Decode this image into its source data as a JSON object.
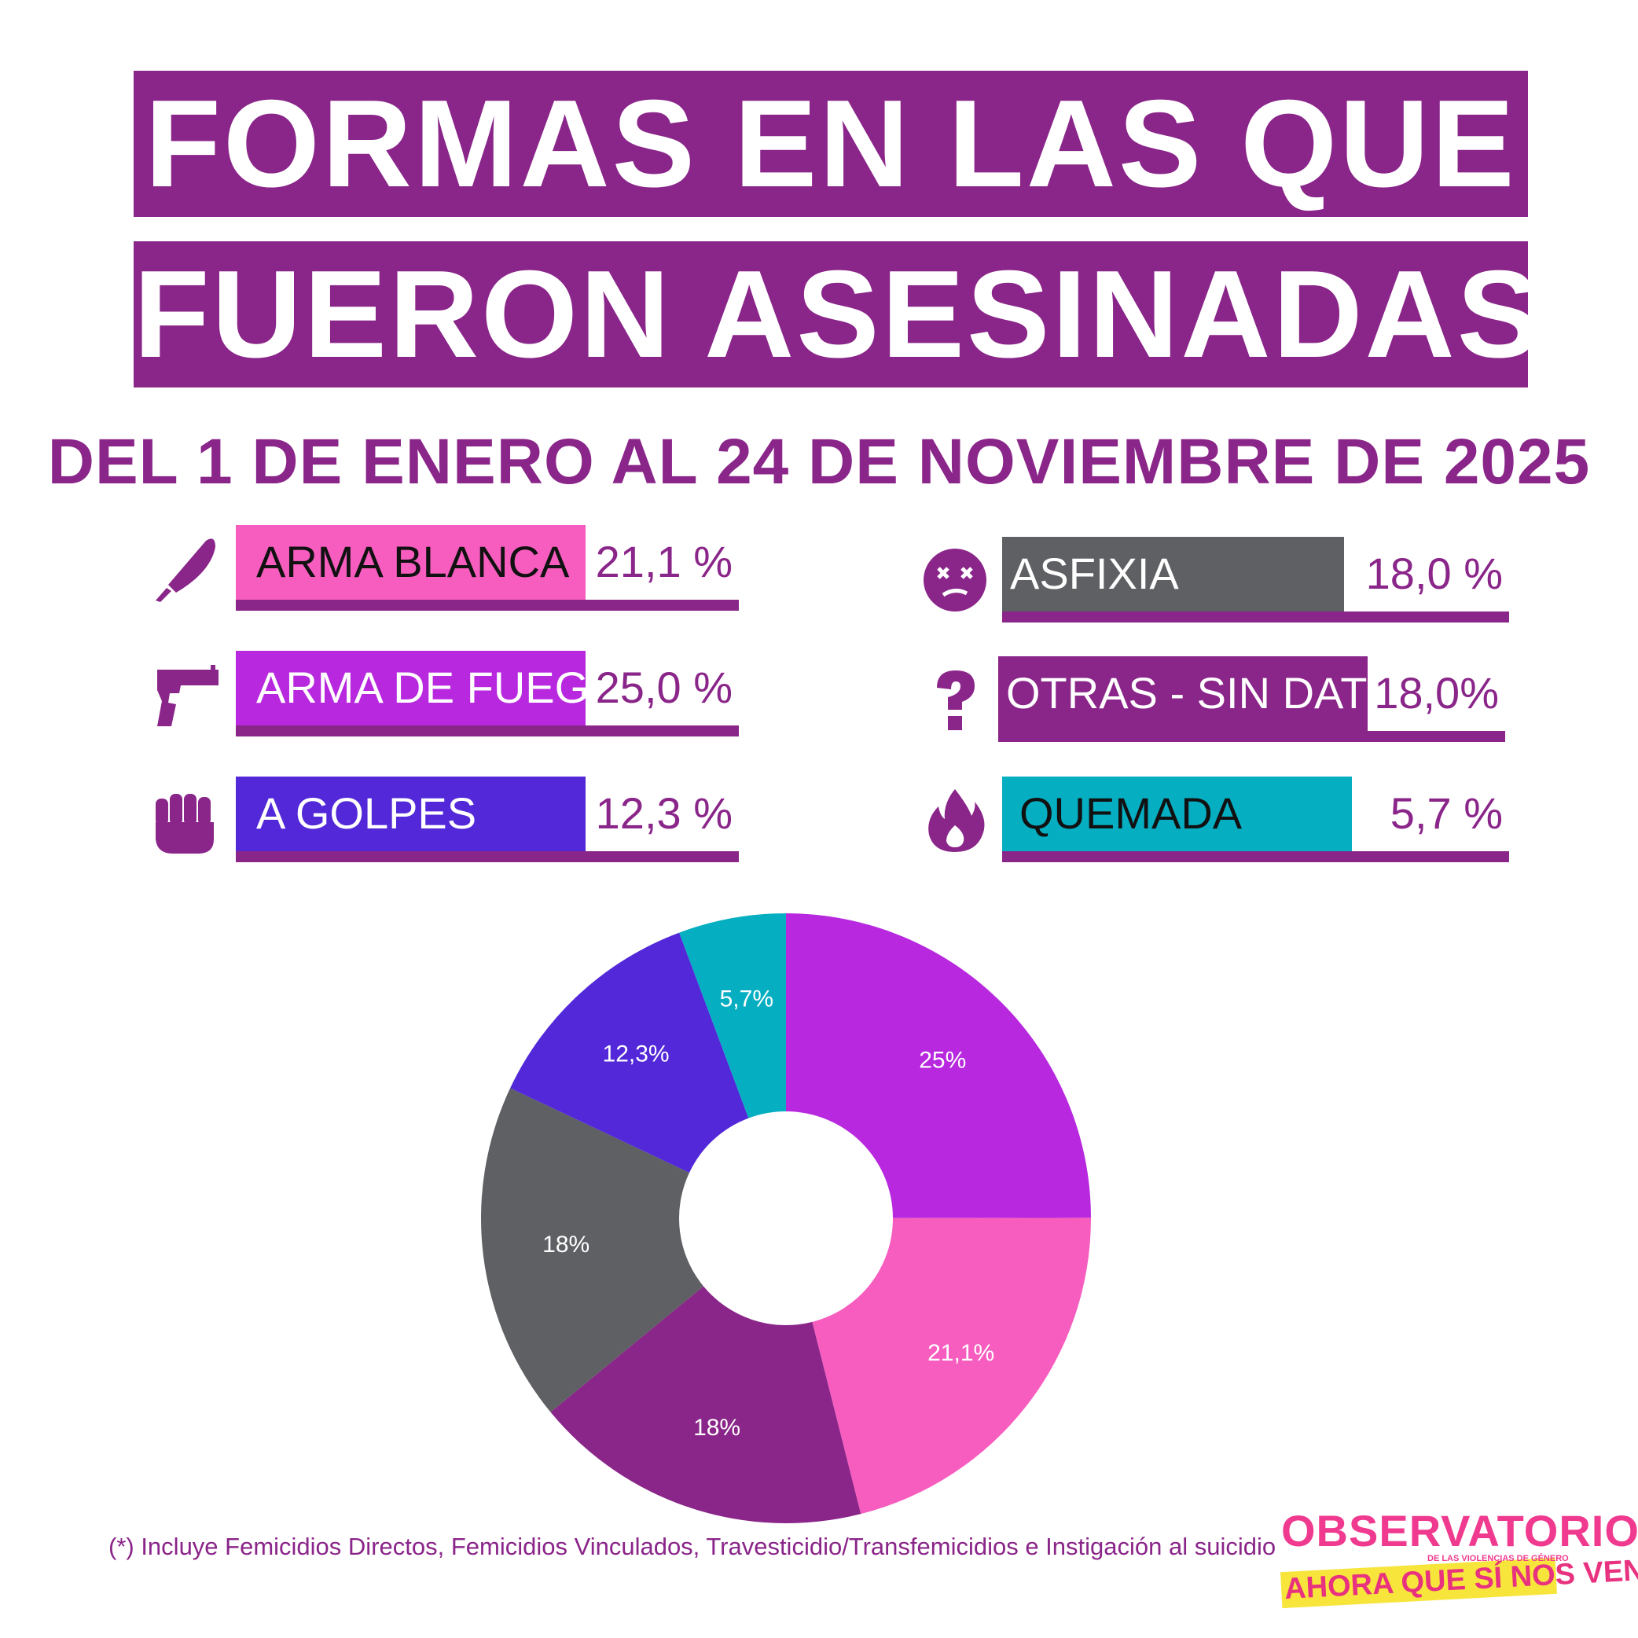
{
  "header": {
    "title_line1": "FORMAS EN LAS QUE",
    "title_line2": "FUERON ASESINADAS",
    "subtitle": "DEL 1 DE ENERO AL 24 DE NOVIEMBRE DE 2025"
  },
  "legend": [
    {
      "label": "ARMA BLANCA",
      "value": "21,1 %",
      "color": "#f75dbf",
      "text_color": "#111111",
      "icon": "knife-icon"
    },
    {
      "label": "ARMA DE FUEGO",
      "value": "25,0 %",
      "color": "#b728df",
      "text_color": "#ffffff",
      "icon": "gun-icon"
    },
    {
      "label": "A GOLPES",
      "value": "12,3 %",
      "color": "#5228d9",
      "text_color": "#ffffff",
      "icon": "fist-icon"
    },
    {
      "label": "ASFIXIA",
      "value": "18,0 %",
      "color": "#5f6064",
      "text_color": "#ffffff",
      "icon": "dizzy-face-icon"
    },
    {
      "label": "OTRAS - SIN DATOS",
      "value": "18,0%",
      "color": "#8a2589",
      "text_color": "#ffffff",
      "icon": "question-icon"
    },
    {
      "label": "QUEMADA",
      "value": "5,7 %",
      "color": "#06aec2",
      "text_color": "#111111",
      "icon": "fire-icon"
    }
  ],
  "chart_data": {
    "type": "pie",
    "style": "donut",
    "slices": [
      {
        "value": 25.0,
        "label": "25%",
        "color": "#b728df"
      },
      {
        "value": 21.1,
        "label": "21,1%",
        "color": "#f75dbf"
      },
      {
        "value": 18.0,
        "label": "18%",
        "color": "#8a2589"
      },
      {
        "value": 18.0,
        "label": "18%",
        "color": "#5f6064"
      },
      {
        "value": 12.3,
        "label": "12,3%",
        "color": "#5228d9"
      },
      {
        "value": 5.7,
        "label": "5,7%",
        "color": "#06aec2"
      }
    ],
    "start_angle_deg": 0,
    "direction": "clockwise"
  },
  "footnote": "(*) Incluye Femicidios Directos, Femicidios Vinculados,  Travesticidio/Transfemicidios e Instigación al suicidio",
  "logo": {
    "name": "OBSERVATORIO",
    "subtitle": "DE LAS VIOLENCIAS DE GÉNERO",
    "tagline": "AHORA QUE SÍ NOS VEN"
  }
}
